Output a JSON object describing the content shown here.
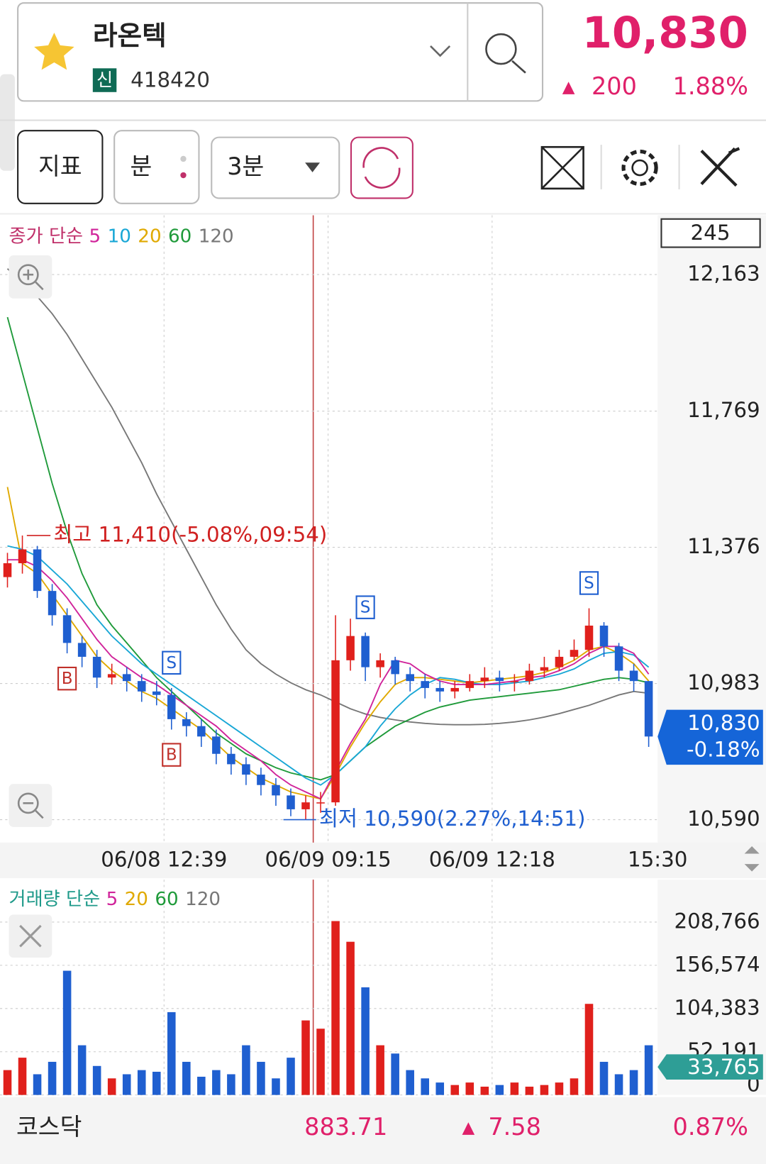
{
  "header": {
    "name": "라온텍",
    "badge": "신",
    "code": "418420",
    "price": "10,830",
    "arrow": "▲",
    "change": "200",
    "change_pct": "1.88%"
  },
  "toolbar": {
    "indicator": "지표",
    "unit": "분",
    "interval": "3분"
  },
  "footer": {
    "index_name": "코스닥",
    "index_value": "883.71",
    "arrow": "▲",
    "index_change": "7.58",
    "index_pct": "0.87%"
  },
  "chart_data": [
    {
      "type": "candlestick",
      "legend_title": "종가 단순",
      "count": 245,
      "xlim": [
        -0.5,
        43.6
      ],
      "xticks": [
        {
          "value": 10.5,
          "label": "06/08 12:39"
        },
        {
          "value": 21.5,
          "label": "06/09 09:15"
        },
        {
          "value": 32.5,
          "label": "06/09 12:18"
        },
        {
          "value": 43.6,
          "label": "15:30"
        }
      ],
      "ylim": [
        10524,
        12334
      ],
      "yticks": [
        {
          "value": 12163,
          "label": "12,163"
        },
        {
          "value": 11769,
          "label": "11,769"
        },
        {
          "value": 11376,
          "label": "11,376"
        },
        {
          "value": 10983,
          "label": "10,983"
        },
        {
          "value": 10590,
          "label": "10,590"
        }
      ],
      "grid": true,
      "up_color": "#e0201c",
      "down_color": "#1f5fd0",
      "open": [
        11290,
        11330,
        11370,
        11250,
        11180,
        11100,
        11060,
        11000,
        11010,
        10990,
        10960,
        10950,
        10880,
        10860,
        10830,
        10780,
        10750,
        10720,
        10690,
        10660,
        10620,
        10640,
        10640,
        11050,
        11120,
        11030,
        11050,
        11010,
        10990,
        10970,
        10960,
        10970,
        10990,
        11000,
        10990,
        10990,
        11020,
        11030,
        11060,
        11080,
        11150,
        11090,
        11020,
        10990
      ],
      "high": [
        11360,
        11410,
        11380,
        11270,
        11200,
        11120,
        11080,
        11040,
        11030,
        11010,
        10990,
        10970,
        10900,
        10880,
        10850,
        10800,
        10770,
        10740,
        10710,
        10680,
        10660,
        10670,
        11180,
        11170,
        11130,
        11070,
        11060,
        11030,
        11010,
        10990,
        10990,
        11010,
        11030,
        11020,
        11010,
        11040,
        11060,
        11080,
        11110,
        11200,
        11160,
        11100,
        11040,
        10990
      ],
      "low": [
        11260,
        11300,
        11230,
        11150,
        11070,
        11030,
        10970,
        10980,
        10960,
        10930,
        10920,
        10850,
        10830,
        10800,
        10750,
        10720,
        10690,
        10660,
        10630,
        10600,
        10590,
        10610,
        10630,
        11020,
        10990,
        11000,
        10980,
        10960,
        10940,
        10930,
        10940,
        10960,
        10970,
        10960,
        10960,
        10980,
        11000,
        11020,
        11050,
        11060,
        11060,
        10990,
        10960,
        10800
      ],
      "close": [
        11330,
        11370,
        11250,
        11180,
        11100,
        11060,
        11000,
        11010,
        10990,
        10960,
        10950,
        10880,
        10860,
        10830,
        10780,
        10750,
        10720,
        10690,
        10660,
        10620,
        10640,
        10640,
        11050,
        11120,
        11030,
        11050,
        11010,
        10990,
        10970,
        10960,
        10970,
        10990,
        11000,
        10990,
        10990,
        11020,
        11030,
        11060,
        11080,
        11150,
        11090,
        11020,
        10990,
        10830
      ],
      "series": [
        {
          "name": "5",
          "color": "#d0239a",
          "values": [
            11340,
            11340,
            11320,
            11280,
            11230,
            11170,
            11110,
            11060,
            11030,
            11000,
            10980,
            10950,
            10920,
            10890,
            10860,
            10820,
            10790,
            10760,
            10720,
            10690,
            10670,
            10650,
            10730,
            10810,
            10880,
            10980,
            11050,
            11040,
            11010,
            10990,
            10980,
            10980,
            10980,
            10985,
            10990,
            11000,
            11005,
            11020,
            11040,
            11070,
            11090,
            11090,
            11070,
            11010
          ]
        },
        {
          "name": "10",
          "color": "#19a7d6",
          "values": [
            11380,
            11370,
            11350,
            11310,
            11270,
            11220,
            11170,
            11120,
            11080,
            11040,
            11010,
            10980,
            10950,
            10920,
            10890,
            10860,
            10830,
            10800,
            10770,
            10740,
            10710,
            10690,
            10720,
            10760,
            10800,
            10860,
            10910,
            10950,
            10980,
            11000,
            10995,
            10985,
            10980,
            10980,
            10985,
            10990,
            11000,
            11010,
            11025,
            11050,
            11070,
            11075,
            11065,
            11030
          ]
        },
        {
          "name": "20",
          "color": "#e0a900",
          "values": [
            11550,
            11330,
            11300,
            11240,
            11180,
            11120,
            11060,
            11020,
            10990,
            10960,
            10940,
            10910,
            10880,
            10850,
            10810,
            10770,
            10740,
            10710,
            10690,
            10670,
            10660,
            10650,
            10720,
            10800,
            10870,
            10930,
            10980,
            11000,
            11000,
            10995,
            10990,
            10985,
            10990,
            10995,
            11000,
            11005,
            11015,
            11030,
            11050,
            11080,
            11090,
            11070,
            11040,
            10990
          ]
        },
        {
          "name": "60",
          "color": "#1f9a3a",
          "values": [
            12040,
            11880,
            11720,
            11560,
            11420,
            11300,
            11210,
            11150,
            11100,
            11050,
            11000,
            10960,
            10920,
            10880,
            10840,
            10810,
            10780,
            10760,
            10740,
            10725,
            10715,
            10705,
            10720,
            10760,
            10800,
            10830,
            10860,
            10880,
            10900,
            10915,
            10925,
            10935,
            10940,
            10945,
            10950,
            10955,
            10960,
            10965,
            10975,
            10985,
            10995,
            11000,
            10995,
            10985
          ]
        },
        {
          "name": "120",
          "color": "#777777",
          "values": [
            12180,
            12140,
            12100,
            12050,
            11990,
            11920,
            11850,
            11780,
            11700,
            11620,
            11530,
            11450,
            11370,
            11290,
            11210,
            11140,
            11080,
            11040,
            11010,
            10985,
            10965,
            10950,
            10930,
            10910,
            10895,
            10885,
            10878,
            10872,
            10868,
            10865,
            10864,
            10864,
            10865,
            10868,
            10872,
            10878,
            10886,
            10896,
            10908,
            10920,
            10935,
            10950,
            10960,
            10955
          ]
        }
      ],
      "signals": [
        {
          "label": "B",
          "index": 4
        },
        {
          "label": "S",
          "index": 11
        },
        {
          "label": "B",
          "index": 11
        },
        {
          "label": "S",
          "index": 24
        },
        {
          "label": "S",
          "index": 39
        }
      ],
      "annotations": {
        "high": "최고 11,410(-5.08%,09:54)",
        "low": "최저 10,590(2.27%,14:51)"
      },
      "current": {
        "value": 10830,
        "label": "10,830",
        "change": "-0.18%"
      }
    },
    {
      "type": "volume",
      "legend_title": "거래량 단순",
      "legend": [
        {
          "name": "5",
          "color": "#d0239a"
        },
        {
          "name": "20",
          "color": "#e0a900"
        },
        {
          "name": "60",
          "color": "#1f9a3a"
        },
        {
          "name": "120",
          "color": "#777777"
        }
      ],
      "ylim": [
        0,
        260000
      ],
      "yticks": [
        {
          "value": 208766,
          "label": "208,766"
        },
        {
          "value": 156574,
          "label": "156,574"
        },
        {
          "value": 104383,
          "label": "104,383"
        },
        {
          "value": 52191,
          "label": "52,191"
        },
        0
      ],
      "values": [
        30000,
        45000,
        25000,
        40000,
        150000,
        60000,
        35000,
        20000,
        25000,
        30000,
        28000,
        100000,
        40000,
        22000,
        30000,
        25000,
        60000,
        40000,
        20000,
        45000,
        90000,
        80000,
        210000,
        185000,
        130000,
        60000,
        50000,
        30000,
        20000,
        15000,
        12000,
        15000,
        10000,
        12000,
        15000,
        10000,
        12000,
        15000,
        20000,
        110000,
        40000,
        25000,
        30000,
        60000
      ],
      "current": {
        "value": 33765,
        "label": "33,765"
      }
    }
  ]
}
